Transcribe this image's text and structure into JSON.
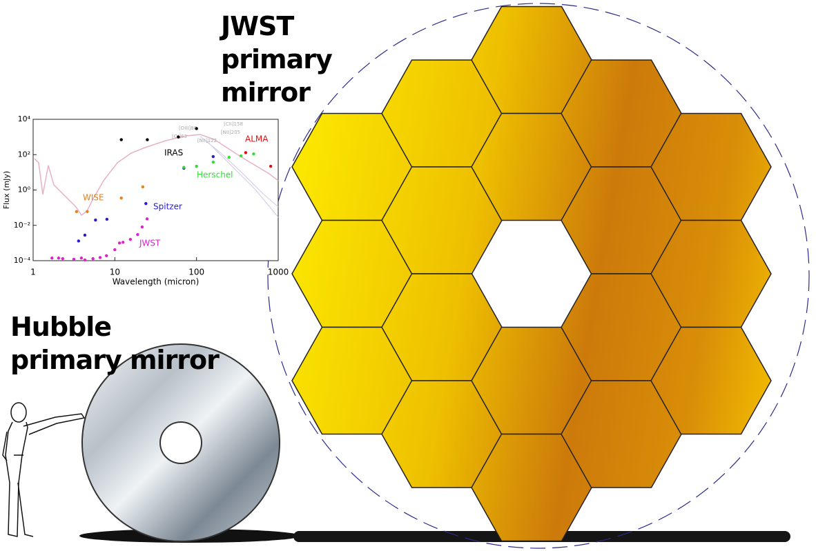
{
  "jwst_title": "JWST primary mirror",
  "hubble_title": "Hubble primary mirror",
  "chart_data": {
    "type": "scatter",
    "x_label": "Wavelength (micron)",
    "y_label": "Flux (mJy)",
    "xlog": true,
    "ylog": true,
    "xlim": [
      1,
      1000
    ],
    "ylim": [
      0.0001,
      10000
    ],
    "xticks": [
      1,
      10,
      100,
      1000
    ],
    "yticks": [
      {
        "value": 0.0001,
        "label": "10⁻⁴"
      },
      {
        "value": 0.01,
        "label": "10⁻²"
      },
      {
        "value": 1,
        "label": "10⁰"
      },
      {
        "value": 100,
        "label": "10²"
      },
      {
        "value": 10000,
        "label": "10⁴"
      }
    ],
    "line_labels": [
      "[OIII]88",
      "[OI]63",
      "[NII]122",
      "[CII]158",
      "[NII]205"
    ],
    "series": [
      {
        "name": "IRAS",
        "color": "#000000",
        "x": [
          12,
          25,
          60,
          100
        ],
        "values": [
          700,
          700,
          1000,
          3000
        ]
      },
      {
        "name": "WISE",
        "color": "#e8801a",
        "x": [
          3.4,
          4.6,
          12,
          22
        ],
        "values": [
          0.06,
          0.06,
          0.35,
          1.5
        ]
      },
      {
        "name": "Spitzer",
        "color": "#2a1ad0",
        "x": [
          3.6,
          4.3,
          5.8,
          8,
          24,
          70,
          160
        ],
        "values": [
          0.0013,
          0.0028,
          0.02,
          0.022,
          0.17,
          17,
          78
        ]
      },
      {
        "name": "Herschel",
        "color": "#33dd33",
        "x": [
          70,
          100,
          160,
          250,
          350,
          500
        ],
        "values": [
          19,
          22,
          38,
          70,
          85,
          110
        ]
      },
      {
        "name": "ALMA",
        "color": "#dd1111",
        "x": [
          400,
          810
        ],
        "values": [
          130,
          22
        ]
      },
      {
        "name": "JWST",
        "color": "#dd22cc",
        "x": [
          1.7,
          2.05,
          2.3,
          3.15,
          3.9,
          4.3,
          5.4,
          6.6,
          7.9,
          10,
          11.4,
          12.6,
          15.5,
          19,
          21.6,
          24.8
        ],
        "values": [
          0.00014,
          0.00014,
          0.00013,
          0.00012,
          0.00014,
          0.00011,
          0.00013,
          0.00015,
          0.00019,
          0.00042,
          0.001,
          0.0011,
          0.0016,
          0.003,
          0.0081,
          0.023
        ]
      }
    ]
  }
}
